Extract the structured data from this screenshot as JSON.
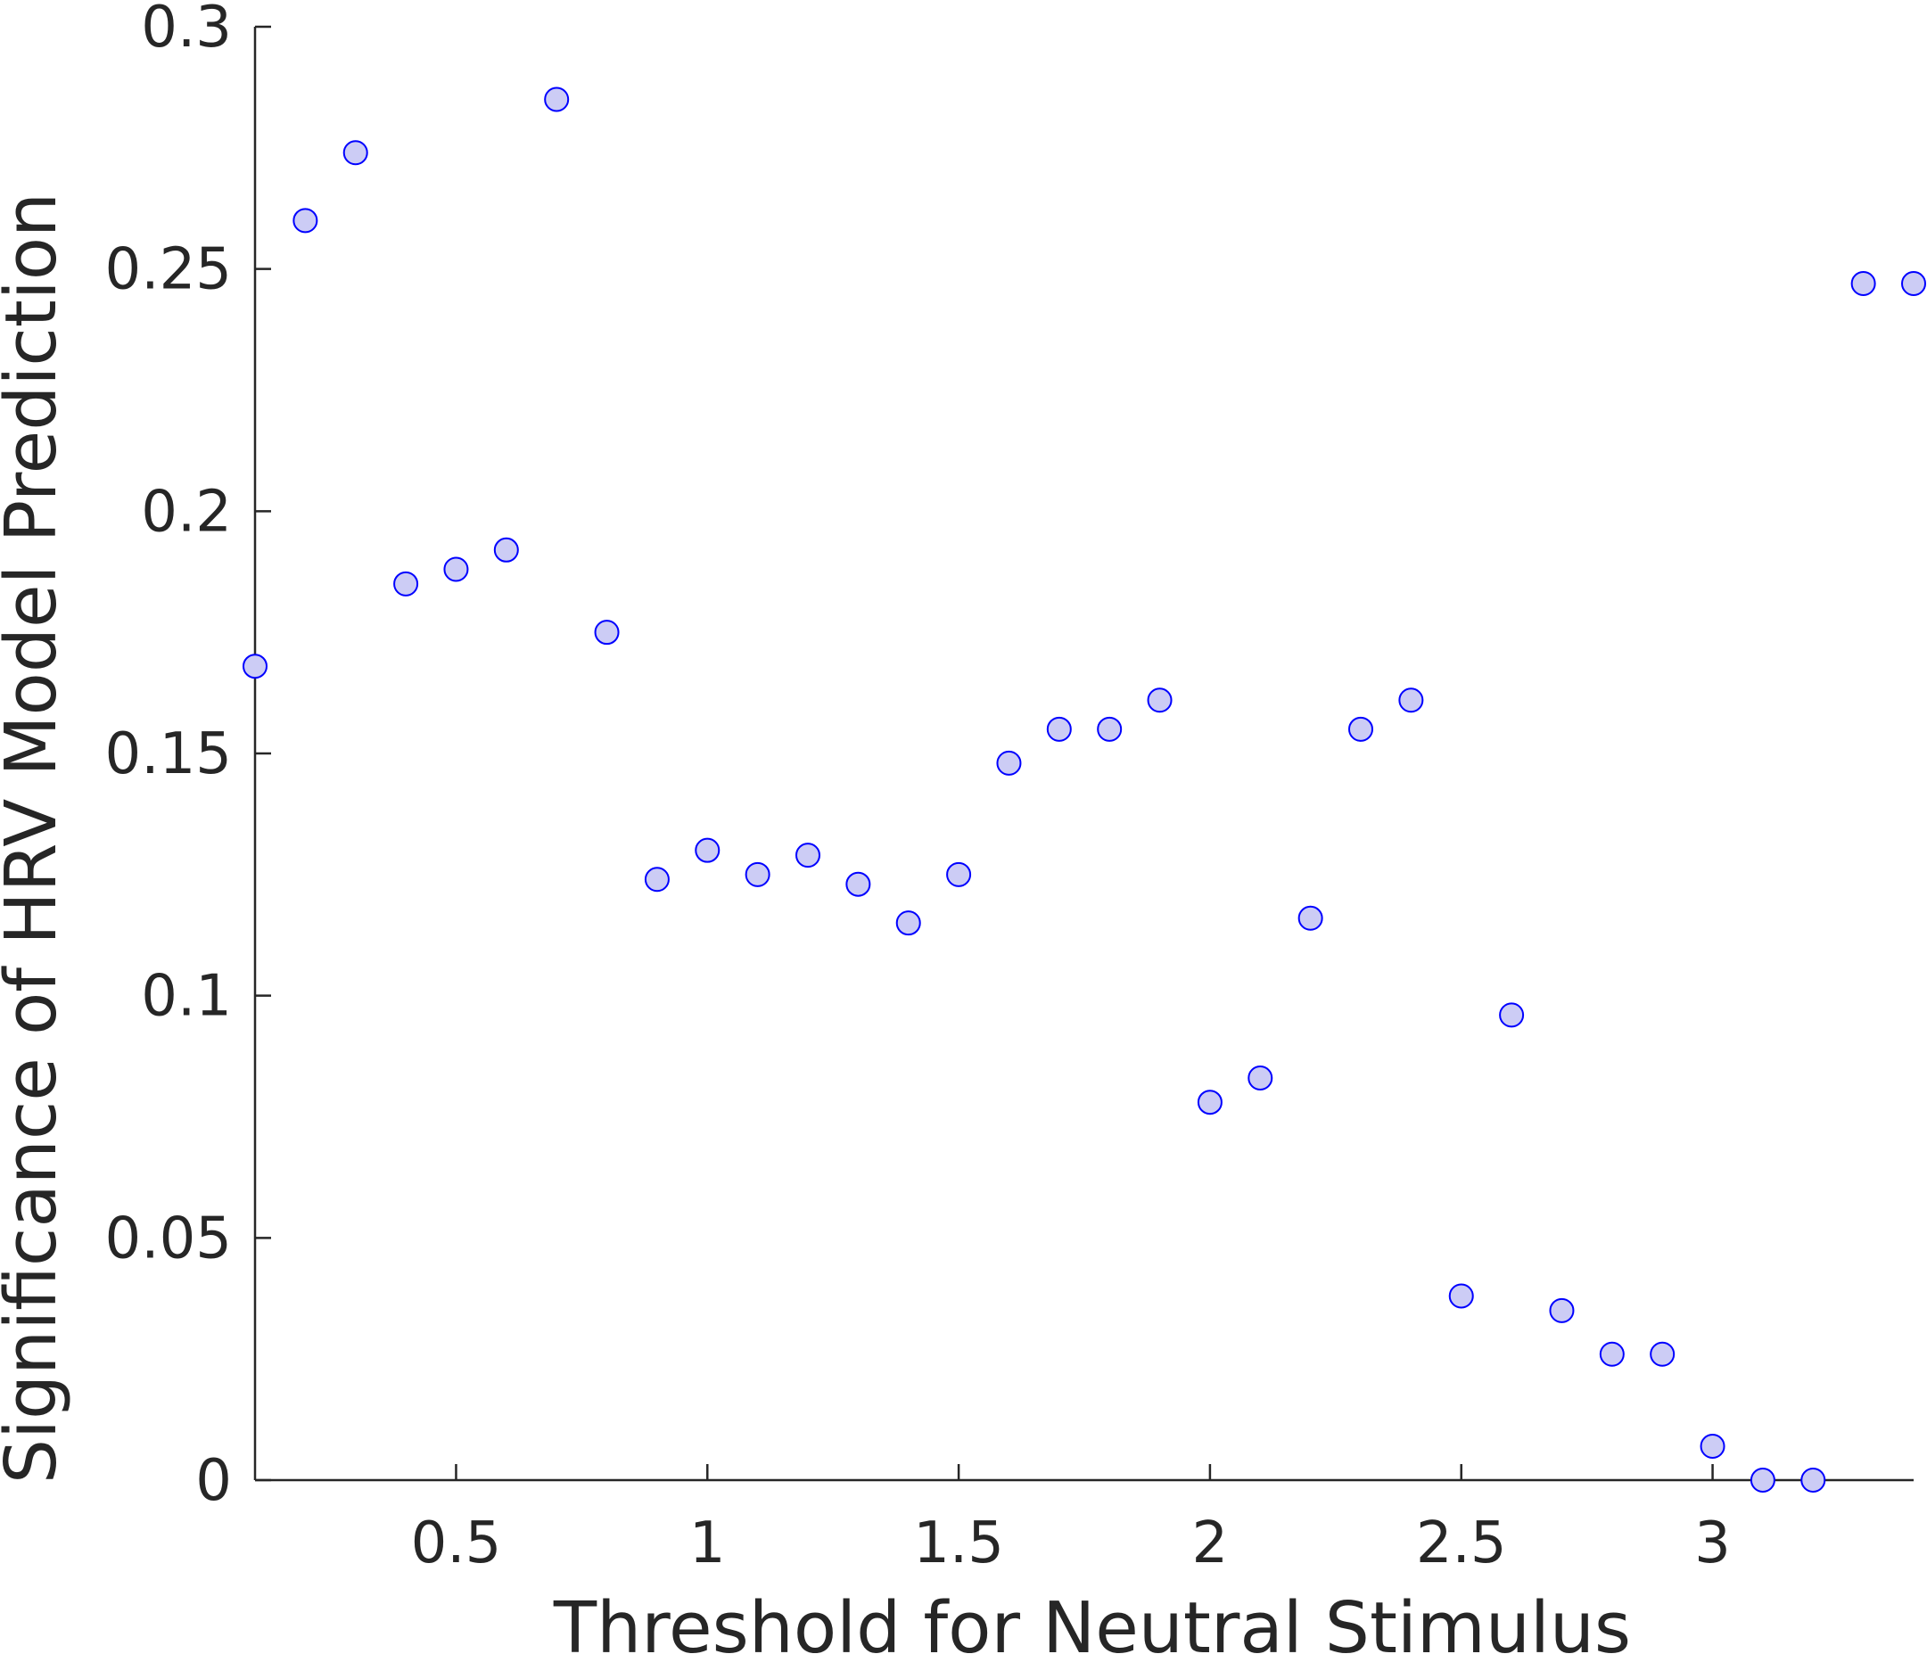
{
  "chart_data": {
    "type": "scatter",
    "title": "",
    "xlabel": "Threshold for Neutral Stimulus",
    "ylabel": "Significance of HRV Model Prediction",
    "xlim": [
      0.1,
      3.4
    ],
    "ylim": [
      0,
      0.3
    ],
    "xticks": [
      0.5,
      1,
      1.5,
      2,
      2.5,
      3
    ],
    "xtick_labels": [
      "0.5",
      "1",
      "1.5",
      "2",
      "2.5",
      "3"
    ],
    "yticks": [
      0,
      0.05,
      0.1,
      0.15,
      0.2,
      0.25,
      0.3
    ],
    "ytick_labels": [
      "0",
      "0.05",
      "0.1",
      "0.15",
      "0.2",
      "0.25",
      "0.3"
    ],
    "grid": false,
    "series": [
      {
        "name": "significance",
        "marker_fill": "#ccccf5",
        "marker_edge": "#0000ff",
        "x": [
          0.1,
          0.2,
          0.3,
          0.4,
          0.5,
          0.6,
          0.7,
          0.8,
          0.9,
          1.0,
          1.1,
          1.2,
          1.3,
          1.4,
          1.5,
          1.6,
          1.7,
          1.8,
          1.9,
          2.0,
          2.1,
          2.2,
          2.3,
          2.4,
          2.5,
          2.6,
          2.7,
          2.8,
          2.9,
          3.0,
          3.1,
          3.2,
          3.3,
          3.4
        ],
        "y": [
          0.168,
          0.26,
          0.274,
          0.185,
          0.188,
          0.192,
          0.285,
          0.175,
          0.124,
          0.13,
          0.125,
          0.129,
          0.123,
          0.115,
          0.125,
          0.148,
          0.155,
          0.155,
          0.161,
          0.078,
          0.083,
          0.116,
          0.155,
          0.161,
          0.038,
          0.096,
          0.035,
          0.026,
          0.026,
          0.007,
          0.0,
          0.0,
          0.247,
          0.247
        ]
      }
    ]
  }
}
